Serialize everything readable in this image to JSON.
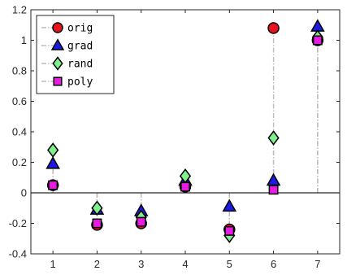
{
  "chart_data": {
    "type": "scatter",
    "title": "",
    "xlabel": "",
    "ylabel": "",
    "x": [
      1,
      2,
      3,
      4,
      5,
      6,
      7
    ],
    "xlim": [
      0.5,
      7.5
    ],
    "ylim": [
      -0.4,
      1.2
    ],
    "xticks": [
      1,
      2,
      3,
      4,
      5,
      6,
      7
    ],
    "yticks": [
      -0.4,
      -0.2,
      0,
      0.2,
      0.4,
      0.6,
      0.8,
      1,
      1.2
    ],
    "xtick_labels": [
      "1",
      "2",
      "3",
      "4",
      "5",
      "6",
      "7"
    ],
    "ytick_labels": [
      "-0.4",
      "-0.2",
      "0",
      "0.2",
      "0.4",
      "0.6",
      "0.8",
      "1",
      "1.2"
    ],
    "grid": false,
    "baseline": 0,
    "stem_color": "#bdbdbd",
    "legend_position": "top-left",
    "series": [
      {
        "name": "orig",
        "marker": "circle",
        "color": "#e8141c",
        "values": [
          0.05,
          -0.21,
          -0.2,
          0.04,
          -0.24,
          1.08,
          1.0
        ]
      },
      {
        "name": "grad",
        "marker": "triangle-up",
        "color": "#1c1ce0",
        "values": [
          0.19,
          -0.11,
          -0.12,
          0.08,
          -0.09,
          0.08,
          1.09
        ]
      },
      {
        "name": "rand",
        "marker": "diamond",
        "color": "#7ef08e",
        "values": [
          0.28,
          -0.1,
          -0.16,
          0.11,
          -0.28,
          0.36,
          1.02
        ]
      },
      {
        "name": "poly",
        "marker": "square",
        "color": "#e81ce0",
        "values": [
          0.05,
          -0.2,
          -0.19,
          0.04,
          -0.25,
          0.02,
          1.0
        ]
      }
    ]
  }
}
